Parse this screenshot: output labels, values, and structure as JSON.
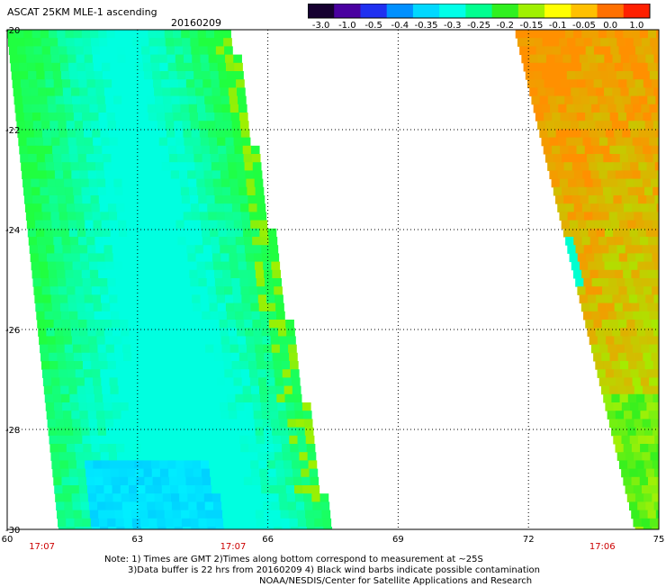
{
  "header": {
    "title": "ASCAT 25KM MLE-1 ascending",
    "date": "20160209"
  },
  "colorbar": {
    "labels": [
      "-3.0",
      "-1.0",
      "-0.5",
      "-0.4",
      "-0.35",
      "-0.3",
      "-0.25",
      "-0.2",
      "-0.15",
      "-0.1",
      "-0.05",
      "0.0",
      "1.0"
    ],
    "colors": [
      "#160030",
      "#4a00a0",
      "#2030f0",
      "#0090ff",
      "#00d8ff",
      "#00ffe8",
      "#00ff90",
      "#30f020",
      "#a0f000",
      "#ffff00",
      "#ffc000",
      "#ff7000",
      "#ff2000"
    ]
  },
  "map": {
    "lon_labels": [
      "60",
      "63",
      "66",
      "69",
      "72",
      "75"
    ],
    "lat_labels": [
      "-20",
      "-22",
      "-24",
      "-26",
      "-28",
      "-30"
    ],
    "time_labels": [
      {
        "text": "17:07",
        "lon": 60.8
      },
      {
        "text": "17:07",
        "lon": 65.2
      },
      {
        "text": "17:06",
        "lon": 73.7
      }
    ],
    "time_color": "#cc0000",
    "swaths": [
      {
        "name": "west-swath",
        "lat_top": -20,
        "lat_bottom": -30,
        "west_lon_top": 60,
        "west_lon_bottom": 61.2,
        "east_lon_top": 65.1,
        "east_lon_bottom": 67.4
      },
      {
        "name": "east-swath",
        "lat_top": -20,
        "lat_bottom": -30,
        "west_lon_top": 71.7,
        "west_lon_bottom": 74.5,
        "east_lon_top": 75,
        "east_lon_bottom": 75
      }
    ]
  },
  "notes": {
    "line1": "Note: 1) Times are GMT 2)Times along bottom correspond to measurement at ~25S",
    "line2": "3)Data buffer is 22 hrs from 20160209 4) Black wind barbs indicate possible contamination",
    "credit": "NOAA/NESDIS/Center for Satellite Applications and Research"
  }
}
